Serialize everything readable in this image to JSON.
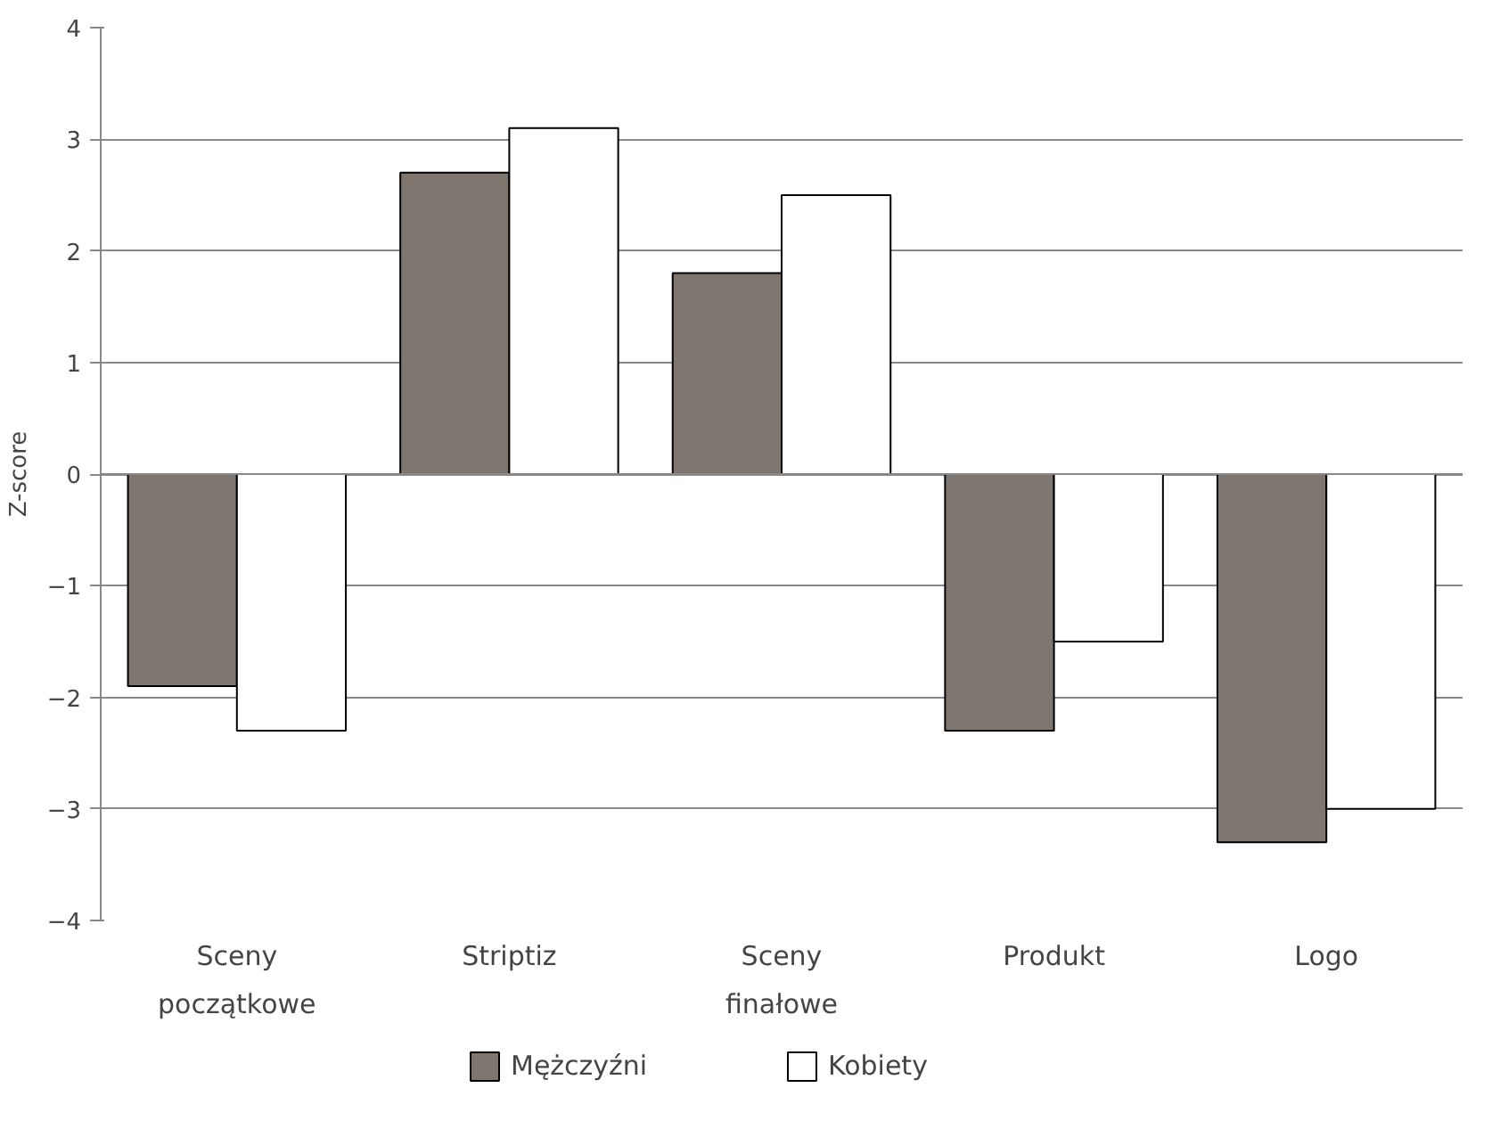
{
  "chart_data": {
    "type": "bar",
    "ylabel": "Z-score",
    "categories": [
      "Sceny\npoczątkowe",
      "Striptiz",
      "Sceny\nfinałowe",
      "Produkt",
      "Logo"
    ],
    "series": [
      {
        "name": "Mężczyźni",
        "color": "#7f776f",
        "values": [
          -1.9,
          2.7,
          1.8,
          -2.3,
          -3.3
        ]
      },
      {
        "name": "Kobiety",
        "color": "#ffffff",
        "values": [
          -2.3,
          3.1,
          2.5,
          -1.5,
          -3.0
        ]
      }
    ],
    "ylim": [
      -4,
      4
    ],
    "yticks": [
      -4,
      -3,
      -2,
      -1,
      0,
      1,
      2,
      3,
      4
    ],
    "grid": "y",
    "legend": "bottom"
  }
}
